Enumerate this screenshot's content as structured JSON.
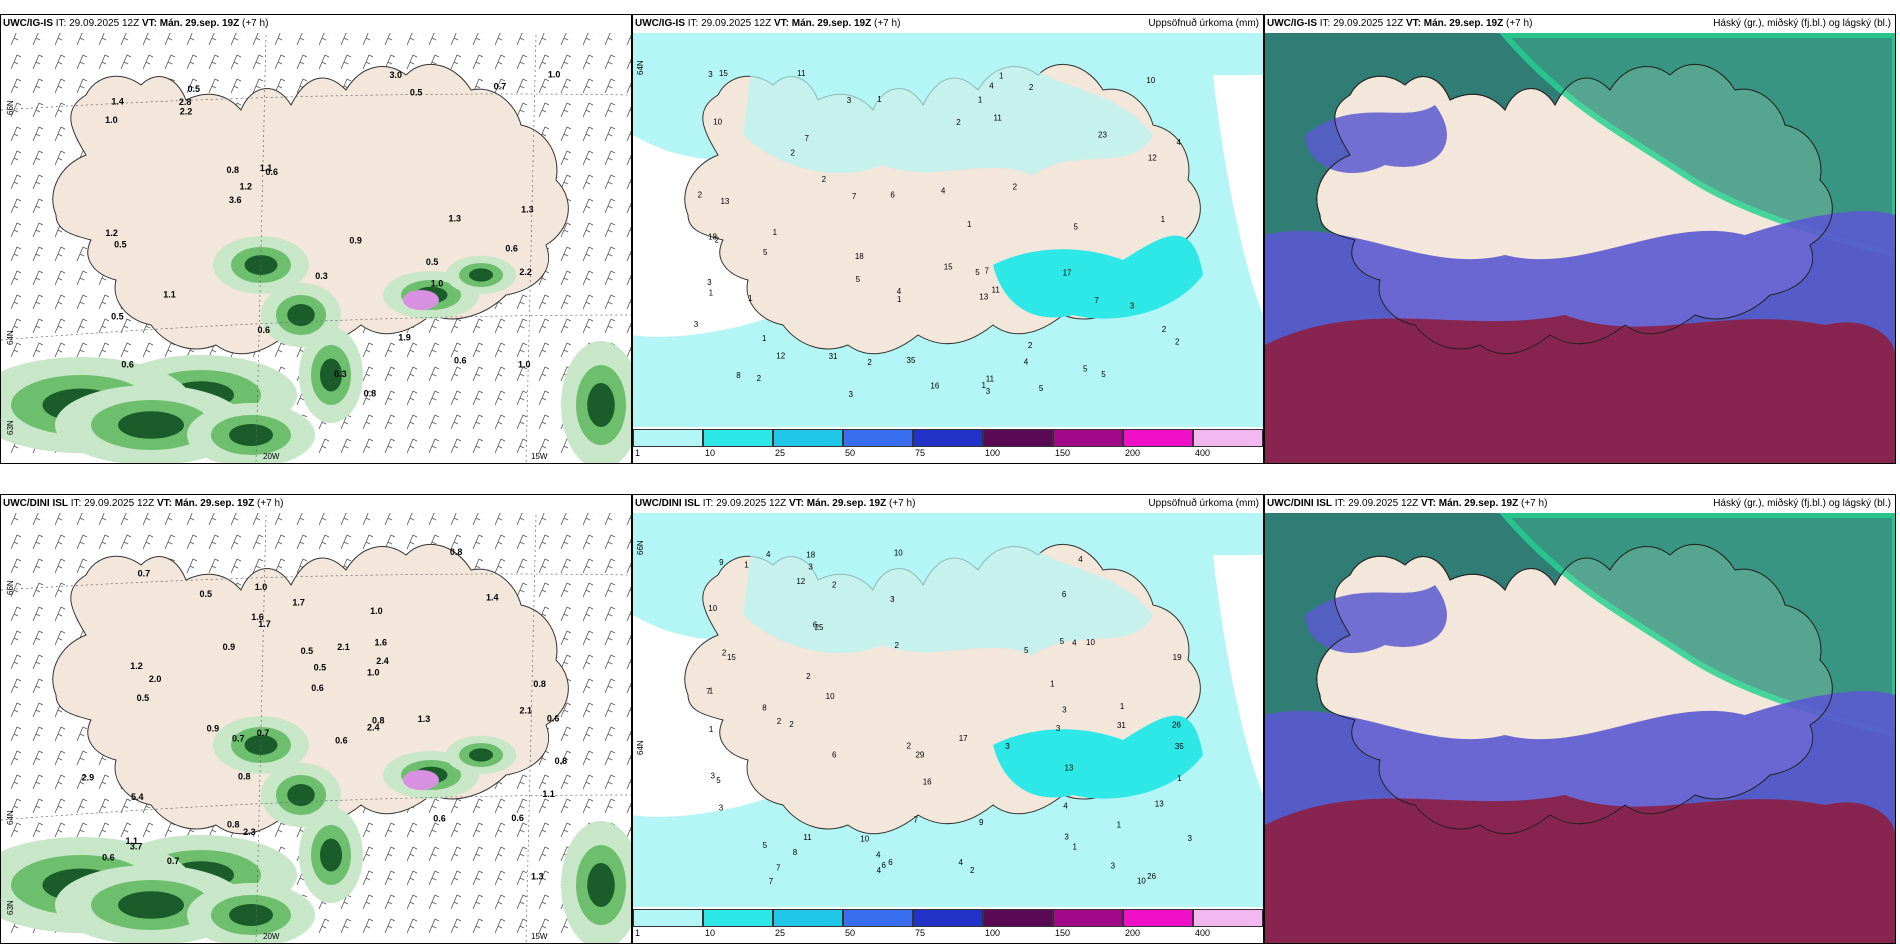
{
  "colors": {
    "land": "#f3e6da",
    "precip_light": "#c8e6c8",
    "precip_mid": "#6dbf6d",
    "precip_dark": "#1a5c2a",
    "snow": "#d890e0",
    "cyan_light": "#b4f5f5",
    "cyan_mid": "#2ee8e8",
    "cloud_high": "#3a9a84",
    "cloud_mid": "#5b59d0",
    "cloud_low": "#8b1f45",
    "cloud_high_edge": "#27d18f"
  },
  "colorbar": {
    "colors": [
      "#b4f5f5",
      "#2ee8e8",
      "#1fc6e8",
      "#3a6ef0",
      "#2234c8",
      "#5a0a55",
      "#a00a8a",
      "#ef10c8",
      "#f4b8f0"
    ],
    "labels": [
      "1",
      "10",
      "25",
      "50",
      "75",
      "100",
      "150",
      "200",
      "400"
    ]
  },
  "panels": [
    {
      "model": "UWC/IG-IS",
      "it_label": "IT:",
      "it_value": "29.09.2025 12Z",
      "vt_label": "VT:",
      "vt_value": "Mán. 29.sep. 19Z",
      "offset": "(+7 h)",
      "right_title": "",
      "kind": "wind",
      "lat_labels": [
        "66N",
        "64N",
        "63N"
      ],
      "lon_labels": [
        "20W",
        "15W"
      ],
      "values": [
        "0.5",
        "0.6",
        "0.6",
        "0.5",
        "0.6",
        "0.6",
        "0.5",
        "0.5",
        "0.8",
        "0.8",
        "1.0",
        "1.2",
        "1.4",
        "1.0",
        "0.6",
        "1.3",
        "0.3",
        "0.9",
        "1.1",
        "1.1",
        "1.0",
        "0.7",
        "3.6",
        "2.2",
        "3.0",
        "2.8",
        "1.0",
        "0.5",
        "2.2",
        "1.3",
        "0.3",
        "1.9",
        "1.2"
      ]
    },
    {
      "model": "UWC/IG-IS",
      "it_label": "IT:",
      "it_value": "29.09.2025 12Z",
      "vt_label": "VT:",
      "vt_value": "Mán. 29.sep. 19Z",
      "offset": "(+7 h)",
      "right_title": "Uppsöfnuð úrkoma (mm)",
      "kind": "accum",
      "lat_labels": [
        "64N"
      ],
      "lon_labels": [],
      "values": [
        "11",
        "13",
        "10",
        "13",
        "18",
        "6",
        "5",
        "7",
        "7",
        "4",
        "12",
        "2",
        "1",
        "4",
        "7",
        "2",
        "2",
        "1",
        "3",
        "2",
        "3",
        "5",
        "1",
        "2",
        "3",
        "1",
        "4",
        "2",
        "5",
        "2",
        "1",
        "5",
        "1",
        "10",
        "15",
        "11",
        "5",
        "3",
        "5",
        "7",
        "1",
        "2",
        "4",
        "3",
        "2",
        "2",
        "5",
        "11",
        "35",
        "12",
        "11",
        "23",
        "18",
        "15",
        "17",
        "16",
        "31",
        "1",
        "1",
        "4",
        "1",
        "2",
        "2",
        "1",
        "8",
        "3",
        "3"
      ]
    },
    {
      "model": "UWC/IG-IS",
      "it_label": "IT:",
      "it_value": "29.09.2025 12Z",
      "vt_label": "VT:",
      "vt_value": "Mán. 29.sep. 19Z",
      "offset": "(+7 h)",
      "right_title": "Háský (gr.), miðský (fj.bl.) og lágský (bl.)",
      "kind": "cloud"
    },
    {
      "model": "UWC/DINI ISL",
      "it_label": "IT:",
      "it_value": "29.09.2025 12Z",
      "vt_label": "VT:",
      "vt_value": "Mán. 29.sep. 19Z",
      "offset": "(+7 h)",
      "right_title": "",
      "kind": "wind",
      "lat_labels": [
        "66N",
        "64N",
        "63N"
      ],
      "lon_labels": [
        "20W",
        "15W"
      ],
      "values": [
        "0.8",
        "1.0",
        "0.5",
        "0.7",
        "0.7",
        "1.0",
        "0.6",
        "0.8",
        "0.9",
        "0.5",
        "0.9",
        "1.4",
        "1.1",
        "1.7",
        "0.8",
        "0.6",
        "0.6",
        "1.3",
        "1.2",
        "2.0",
        "3.7",
        "1.1",
        "2.1",
        "0.6",
        "0.8",
        "2.3",
        "0.5",
        "2.1",
        "0.8",
        "0.7",
        "1.3",
        "1.6",
        "0.7",
        "0.6",
        "0.6",
        "0.8",
        "2.4",
        "2.4",
        "1.7",
        "1.6",
        "1.0",
        "0.5",
        "5.4",
        "2.9"
      ]
    },
    {
      "model": "UWC/DINI ISL",
      "it_label": "IT:",
      "it_value": "29.09.2025 12Z",
      "vt_label": "VT:",
      "vt_value": "Mán. 29.sep. 19Z",
      "offset": "(+7 h)",
      "right_title": "Uppsöfnuð úrkoma (mm)",
      "kind": "accum",
      "lat_labels": [
        "66N",
        "64N"
      ],
      "lon_labels": [],
      "values": [
        "8",
        "2",
        "10",
        "17",
        "15",
        "11",
        "13",
        "6",
        "6",
        "2",
        "10",
        "4",
        "8",
        "10",
        "1",
        "3",
        "1",
        "3",
        "9",
        "7",
        "2",
        "5",
        "3",
        "1",
        "7",
        "4",
        "2",
        "1",
        "1",
        "4",
        "1",
        "2",
        "2",
        "3",
        "4",
        "6",
        "9",
        "29",
        "10",
        "16",
        "31",
        "35",
        "18",
        "26",
        "25",
        "12",
        "19",
        "26",
        "5",
        "10",
        "7",
        "5",
        "4",
        "7",
        "4",
        "6",
        "5",
        "13",
        "6",
        "3",
        "1",
        "3",
        "3",
        "2",
        "3",
        "3",
        "10",
        "2",
        "4",
        "1",
        "3"
      ]
    },
    {
      "model": "UWC/DINI ISL",
      "it_label": "IT:",
      "it_value": "29.09.2025 12Z",
      "vt_label": "VT:",
      "vt_value": "Mán. 29.sep. 19Z",
      "offset": "(+7 h)",
      "right_title": "Háský (gr.), miðský (fj.bl.) og lágský (bl.)",
      "kind": "cloud"
    }
  ]
}
